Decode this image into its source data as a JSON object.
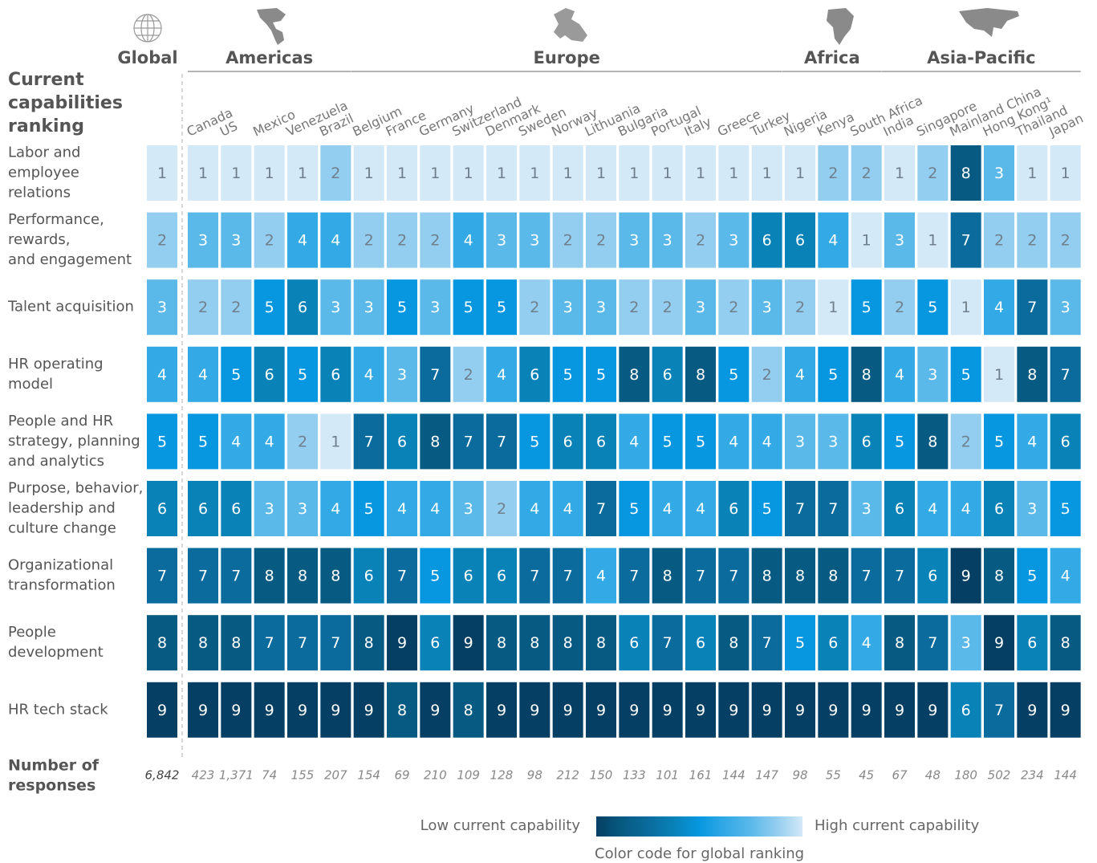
{
  "chart_data": {
    "type": "heatmap",
    "title": [
      "Current",
      "capabilities",
      "ranking"
    ],
    "global": "Global",
    "regions": [
      {
        "name": "Americas",
        "countries": [
          "Canada",
          "US",
          "Mexico",
          "Venezuela",
          "Brazil"
        ]
      },
      {
        "name": "Europe",
        "countries": [
          "Belgium",
          "France",
          "Germany",
          "Switzerland",
          "Denmark",
          "Sweden",
          "Norway",
          "Lithuania",
          "Bulgaria",
          "Portugal",
          "Italy",
          "Greece",
          "Turkey"
        ]
      },
      {
        "name": "Africa",
        "countries": [
          "Nigeria",
          "Kenya",
          "South Africa"
        ]
      },
      {
        "name": "Asia-Pacific",
        "countries": [
          "India",
          "Singapore",
          "Mainland China",
          "Hong Kong¹",
          "Thailand",
          "Japan"
        ]
      }
    ],
    "rows": [
      {
        "label": [
          "Labor and",
          "employee",
          "relations"
        ],
        "values": [
          1,
          1,
          1,
          1,
          1,
          2,
          1,
          1,
          1,
          1,
          1,
          1,
          1,
          1,
          1,
          1,
          1,
          1,
          1,
          1,
          2,
          2,
          1,
          2,
          8,
          3,
          1,
          1
        ]
      },
      {
        "label": [
          "Performance,",
          "rewards,",
          "and engagement"
        ],
        "values": [
          2,
          3,
          3,
          2,
          4,
          4,
          2,
          2,
          2,
          4,
          3,
          3,
          2,
          2,
          3,
          3,
          2,
          3,
          6,
          6,
          4,
          1,
          3,
          1,
          7,
          2,
          2,
          2
        ]
      },
      {
        "label": [
          "Talent acquisition"
        ],
        "values": [
          3,
          2,
          2,
          5,
          6,
          3,
          3,
          5,
          3,
          5,
          5,
          2,
          3,
          3,
          2,
          2,
          3,
          2,
          3,
          2,
          1,
          5,
          2,
          5,
          1,
          4,
          7,
          3
        ]
      },
      {
        "label": [
          "HR operating",
          "model"
        ],
        "values": [
          4,
          4,
          5,
          6,
          5,
          6,
          4,
          3,
          7,
          2,
          4,
          6,
          5,
          5,
          8,
          6,
          8,
          5,
          2,
          4,
          5,
          8,
          4,
          3,
          5,
          1,
          8,
          7
        ]
      },
      {
        "label": [
          "People and HR",
          "strategy, planning",
          "and analytics"
        ],
        "values": [
          5,
          5,
          4,
          4,
          2,
          1,
          7,
          6,
          8,
          7,
          7,
          5,
          6,
          6,
          4,
          5,
          5,
          4,
          4,
          3,
          3,
          6,
          5,
          8,
          2,
          5,
          4,
          6
        ]
      },
      {
        "label": [
          "Purpose, behavior,",
          "leadership and",
          "culture change"
        ],
        "values": [
          6,
          6,
          6,
          3,
          3,
          4,
          5,
          4,
          4,
          3,
          2,
          4,
          4,
          7,
          5,
          4,
          4,
          6,
          5,
          7,
          7,
          3,
          6,
          4,
          4,
          6,
          3,
          5
        ]
      },
      {
        "label": [
          "Organizational",
          "transformation"
        ],
        "values": [
          7,
          7,
          7,
          8,
          8,
          8,
          6,
          7,
          5,
          6,
          6,
          7,
          7,
          4,
          7,
          8,
          7,
          7,
          8,
          8,
          8,
          7,
          7,
          6,
          9,
          8,
          5,
          4
        ]
      },
      {
        "label": [
          "People",
          "development"
        ],
        "values": [
          8,
          8,
          8,
          7,
          7,
          7,
          8,
          9,
          6,
          9,
          8,
          8,
          8,
          8,
          6,
          7,
          6,
          8,
          7,
          5,
          6,
          4,
          8,
          7,
          3,
          9,
          6,
          8
        ]
      },
      {
        "label": [
          "HR tech stack"
        ],
        "values": [
          9,
          9,
          9,
          9,
          9,
          9,
          9,
          8,
          9,
          8,
          9,
          9,
          9,
          9,
          9,
          9,
          9,
          9,
          9,
          9,
          9,
          9,
          9,
          9,
          6,
          7,
          9,
          9
        ]
      }
    ],
    "responses": {
      "label": [
        "Number of",
        "responses"
      ],
      "values": [
        6842,
        423,
        1371,
        74,
        155,
        207,
        154,
        69,
        210,
        109,
        128,
        98,
        212,
        150,
        133,
        101,
        161,
        144,
        147,
        98,
        55,
        45,
        67,
        48,
        180,
        502,
        234,
        144
      ],
      "value_labels": [
        "6,842",
        "423",
        "1,371",
        "74",
        "155",
        "207",
        "154",
        "69",
        "210",
        "109",
        "128",
        "98",
        "212",
        "150",
        "133",
        "101",
        "161",
        "144",
        "147",
        "98",
        "55",
        "45",
        "67",
        "48",
        "180",
        "502",
        "234",
        "144"
      ]
    },
    "colors": [
      "#d3e9f8",
      "#93cdef",
      "#5bb9ea",
      "#33a9e6",
      "#0797e0",
      "#0982b8",
      "#0a6b9c",
      "#075a82",
      "#053f63"
    ],
    "legend": {
      "low": "Low current capability",
      "high": "High current capability",
      "caption": "Color code for global ranking"
    }
  }
}
